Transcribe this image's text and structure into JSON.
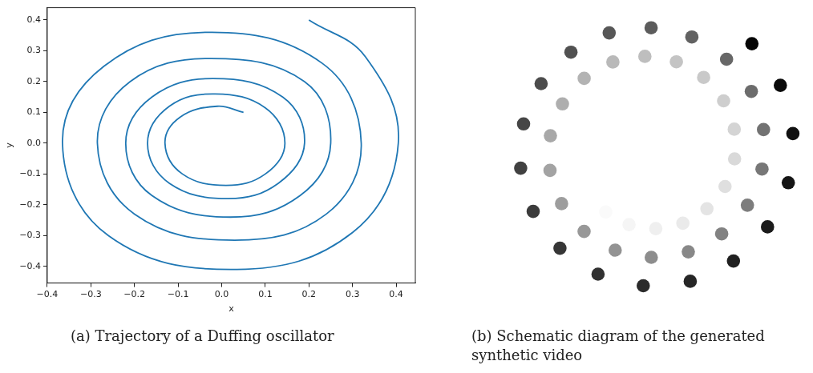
{
  "chart_data": [
    {
      "type": "line",
      "xlabel": "x",
      "ylabel": "y",
      "xlim": [
        -0.4,
        0.444
      ],
      "ylim": [
        -0.454,
        0.44
      ],
      "grid": false,
      "legend": false,
      "marker": "none",
      "xticks": [
        {
          "value": -0.4,
          "label": "−0.4"
        },
        {
          "value": -0.3,
          "label": "−0.3"
        },
        {
          "value": -0.2,
          "label": "−0.2"
        },
        {
          "value": -0.1,
          "label": "−0.1"
        },
        {
          "value": 0,
          "label": "0.0"
        },
        {
          "value": 0.1,
          "label": "0.1"
        },
        {
          "value": 0.2,
          "label": "0.2"
        },
        {
          "value": 0.3,
          "label": "0.3"
        },
        {
          "value": 0.4,
          "label": "0.4"
        }
      ],
      "yticks": [
        {
          "value": -0.4,
          "label": "−0.4"
        },
        {
          "value": -0.3,
          "label": "−0.3"
        },
        {
          "value": -0.2,
          "label": "−0.2"
        },
        {
          "value": -0.1,
          "label": "−0.1"
        },
        {
          "value": 0,
          "label": "0.0"
        },
        {
          "value": 0.1,
          "label": "0.1"
        },
        {
          "value": 0.2,
          "label": "0.2"
        },
        {
          "value": 0.3,
          "label": "0.3"
        },
        {
          "value": 0.4,
          "label": "0.4"
        }
      ],
      "series": [
        {
          "color": "#1f77b4",
          "x": [
            0.2,
            0.33,
            0.405,
            0.3,
            0.035,
            -0.26,
            -0.365,
            -0.27,
            -0.035,
            0.23,
            0.32,
            0.24,
            0.03,
            -0.2,
            -0.285,
            -0.21,
            -0.025,
            0.19,
            0.25,
            0.18,
            0.02,
            -0.16,
            -0.22,
            -0.16,
            -0.02,
            0.14,
            0.19,
            0.13,
            0.015,
            -0.12,
            -0.17,
            -0.12,
            -0.015,
            0.1,
            0.145,
            0.1,
            0.01,
            -0.09,
            -0.13,
            -0.095,
            -0.01,
            0.05
          ],
          "values": [
            0.4,
            0.28,
            0,
            -0.29,
            -0.41,
            -0.3,
            0,
            0.25,
            0.36,
            0.26,
            0,
            -0.23,
            -0.315,
            -0.23,
            0,
            0.2,
            0.275,
            0.2,
            0,
            -0.17,
            -0.24,
            -0.17,
            0,
            0.15,
            0.21,
            0.15,
            0,
            -0.13,
            -0.18,
            -0.13,
            0,
            0.12,
            0.16,
            0.115,
            0,
            -0.1,
            -0.137,
            -0.1,
            0,
            0.085,
            0.12,
            0.1
          ]
        }
      ],
      "annotations": [
        "(a)  Trajectory of a Duffing oscillator"
      ]
    },
    {
      "type": "other",
      "annotations": [
        "(b)  Schematic diagram of the generated synthetic video"
      ]
    }
  ]
}
